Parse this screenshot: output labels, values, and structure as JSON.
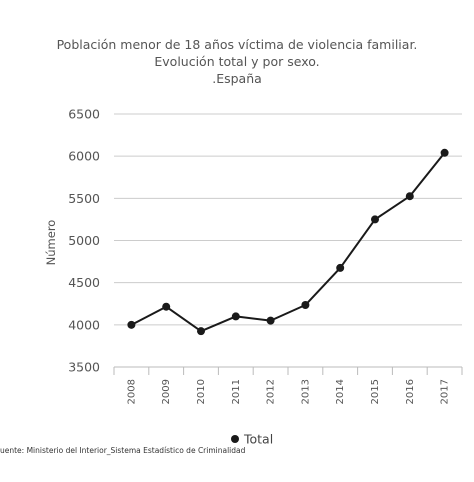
{
  "chart_data": {
    "type": "line",
    "title_lines": [
      "Población menor de 18 años víctima de violencia familiar.",
      "Evolución total y por sexo.",
      ".España"
    ],
    "xlabel": "",
    "ylabel": "Número",
    "x": [
      "2008",
      "2009",
      "2010",
      "2011",
      "2012",
      "2013",
      "2014",
      "2015",
      "2016",
      "2017"
    ],
    "yticks": [
      3500,
      4000,
      4500,
      5000,
      5500,
      6000,
      6500
    ],
    "ylim": [
      3500,
      6500
    ],
    "grid": true,
    "legend_position": "bottom",
    "series": [
      {
        "name": "Total",
        "color": "#1a1a1a",
        "values": [
          4000,
          4215,
          3925,
          4100,
          4050,
          4235,
          4675,
          5250,
          5525,
          6040
        ]
      }
    ]
  },
  "source": "uente: Ministerio del Interior_Sistema Estadístico de Criminalidad"
}
